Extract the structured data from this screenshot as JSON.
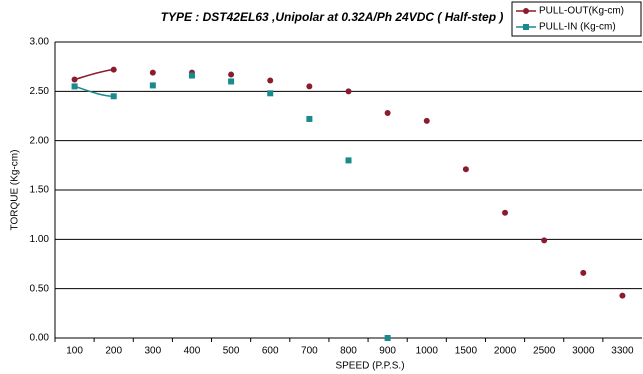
{
  "chart_data": {
    "type": "line",
    "title": "TYPE : DST42EL63  ,Unipolar at 0.32A/Ph 24VDC  ( Half-step )",
    "x_label": "SPEED (P.P.S.)",
    "y_label": "TORQUE (Kg-cm)",
    "categories": [
      "100",
      "200",
      "300",
      "400",
      "500",
      "600",
      "700",
      "800",
      "900",
      "1000",
      "1500",
      "2000",
      "2500",
      "3000",
      "3300"
    ],
    "series": [
      {
        "name": "PULL-OUT(Kg-cm)",
        "color": "#8b1c2c",
        "marker": "circle",
        "values": [
          2.62,
          2.72,
          2.69,
          2.69,
          2.67,
          2.61,
          2.55,
          2.5,
          2.28,
          2.2,
          1.71,
          1.27,
          0.99,
          0.66,
          0.43
        ]
      },
      {
        "name": "PULL-IN  (Kg-cm)",
        "color": "#1a8a8c",
        "marker": "square",
        "values": [
          2.55,
          2.45,
          2.56,
          2.66,
          2.6,
          2.48,
          2.22,
          1.8,
          0,
          null,
          null,
          null,
          null,
          null,
          null
        ]
      }
    ],
    "ylim": [
      0,
      3
    ],
    "yticks": [
      {
        "value": 0,
        "label": "0.00"
      },
      {
        "value": 0.5,
        "label": "0.50"
      },
      {
        "value": 1,
        "label": "1.00"
      },
      {
        "value": 1.5,
        "label": "1.50"
      },
      {
        "value": 2,
        "label": "2.00"
      },
      {
        "value": 2.5,
        "label": "2.50"
      },
      {
        "value": 3,
        "label": "3.00"
      }
    ],
    "grid": true,
    "legend": "top-right"
  }
}
